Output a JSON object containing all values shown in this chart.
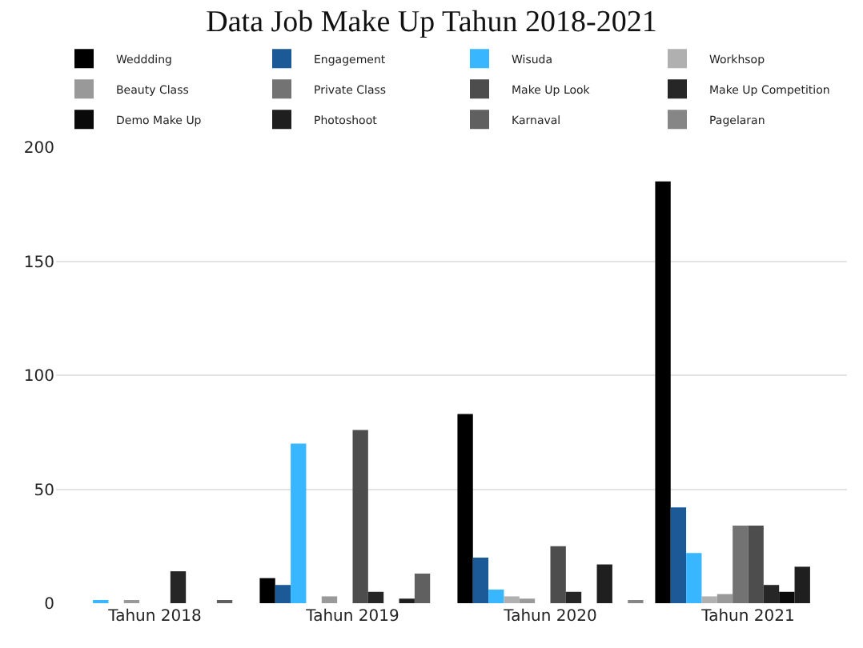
{
  "chart_data": {
    "type": "bar",
    "title": "Data Job Make Up Tahun 2018-2021",
    "categories": [
      "Tahun 2018",
      "Tahun 2019",
      "Tahun 2020",
      "Tahun 2021"
    ],
    "series": [
      {
        "name": "Weddding",
        "color": "#000000",
        "values": [
          0,
          11,
          83,
          185
        ]
      },
      {
        "name": "Engagement",
        "color": "#1b5a96",
        "values": [
          0,
          8,
          20,
          42
        ]
      },
      {
        "name": "Wisuda",
        "color": "#38b6ff",
        "values": [
          1,
          70,
          6,
          22
        ]
      },
      {
        "name": "Workhsop",
        "color": "#b0b0b0",
        "values": [
          0,
          0,
          3,
          3
        ]
      },
      {
        "name": "Beauty Class",
        "color": "#999999",
        "values": [
          1,
          3,
          2,
          4
        ]
      },
      {
        "name": "Private Class",
        "color": "#737373",
        "values": [
          0,
          0,
          0,
          34
        ]
      },
      {
        "name": "Make Up Look",
        "color": "#4d4d4d",
        "values": [
          0,
          76,
          25,
          34
        ]
      },
      {
        "name": "Make Up Competition",
        "color": "#262626",
        "values": [
          14,
          5,
          5,
          8
        ]
      },
      {
        "name": "Demo Make Up",
        "color": "#0a0a0a",
        "values": [
          0,
          0,
          0,
          5
        ]
      },
      {
        "name": "Photoshoot",
        "color": "#1f1f1f",
        "values": [
          0,
          2,
          17,
          16
        ]
      },
      {
        "name": "Karnaval",
        "color": "#606060",
        "values": [
          1,
          13,
          0,
          0
        ]
      },
      {
        "name": "Pagelaran",
        "color": "#868686",
        "values": [
          0,
          0,
          1,
          0
        ]
      }
    ],
    "ylim": [
      0,
      200
    ],
    "yticks": [
      0,
      50,
      100,
      150,
      200
    ],
    "grid": "y",
    "legend": "top"
  }
}
